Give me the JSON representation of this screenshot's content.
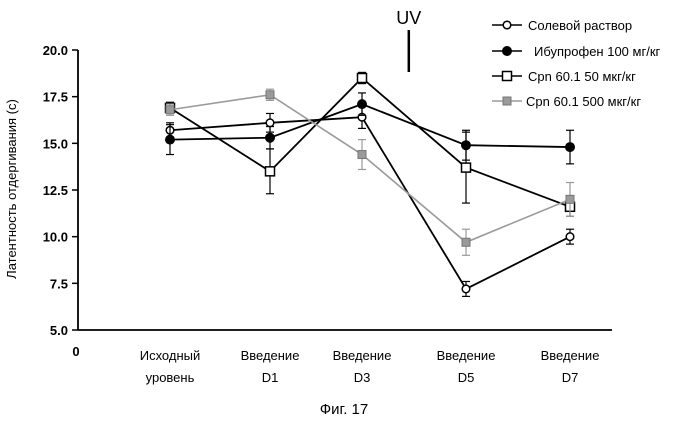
{
  "chart_data": {
    "type": "line",
    "title": "",
    "caption": "Фиг. 17",
    "xlabel": "",
    "ylabel": "Латентность отдергивания (с)",
    "ylim": [
      5.0,
      20.0
    ],
    "yticks": [
      "5.0",
      "7.5",
      "10.0",
      "12.5",
      "15.0",
      "17.5",
      "20.0"
    ],
    "x_origin_label": "0",
    "categories": [
      "Исходный уровень",
      "Введение D1",
      "Введение D3",
      "Введение D5",
      "Введение D7"
    ],
    "category_lines": [
      [
        "Исходный",
        "уровень"
      ],
      [
        "Введение",
        "D1"
      ],
      [
        "Введение",
        "D3"
      ],
      [
        "Введение",
        "D5"
      ],
      [
        "Введение",
        "D7"
      ]
    ],
    "x_points": [
      0,
      1,
      1.8,
      2.6,
      3.6
    ],
    "annotation": {
      "text": "UV",
      "x": 2.45
    },
    "grid": false,
    "legend_position": "top-right",
    "series": [
      {
        "name": "Солевой раствор",
        "marker": "open-circle",
        "color": "#000000",
        "values": [
          15.7,
          16.1,
          16.4,
          7.2,
          10.0
        ],
        "errors": [
          0.4,
          0.5,
          0.6,
          0.4,
          0.4
        ]
      },
      {
        "name": "Ибупрофен 100 мг/кг",
        "marker": "filled-circle",
        "color": "#000000",
        "values": [
          15.2,
          15.3,
          17.1,
          14.9,
          14.8
        ],
        "errors": [
          0.8,
          0.6,
          0.6,
          0.8,
          0.9
        ]
      },
      {
        "name": "Cpn 60.1 50 мкг/кг",
        "marker": "open-square",
        "color": "#000000",
        "values": [
          16.9,
          13.5,
          18.5,
          13.7,
          11.6
        ],
        "errors": [
          0.3,
          1.2,
          0.3,
          1.9,
          0.5
        ]
      },
      {
        "name": "Cpn 60.1 500 мкг/кг",
        "marker": "gray-square",
        "color": "#9a9a9a",
        "values": [
          16.8,
          17.6,
          14.4,
          9.7,
          12.0
        ],
        "errors": [
          0.3,
          0.3,
          0.8,
          0.7,
          0.9
        ]
      }
    ]
  }
}
